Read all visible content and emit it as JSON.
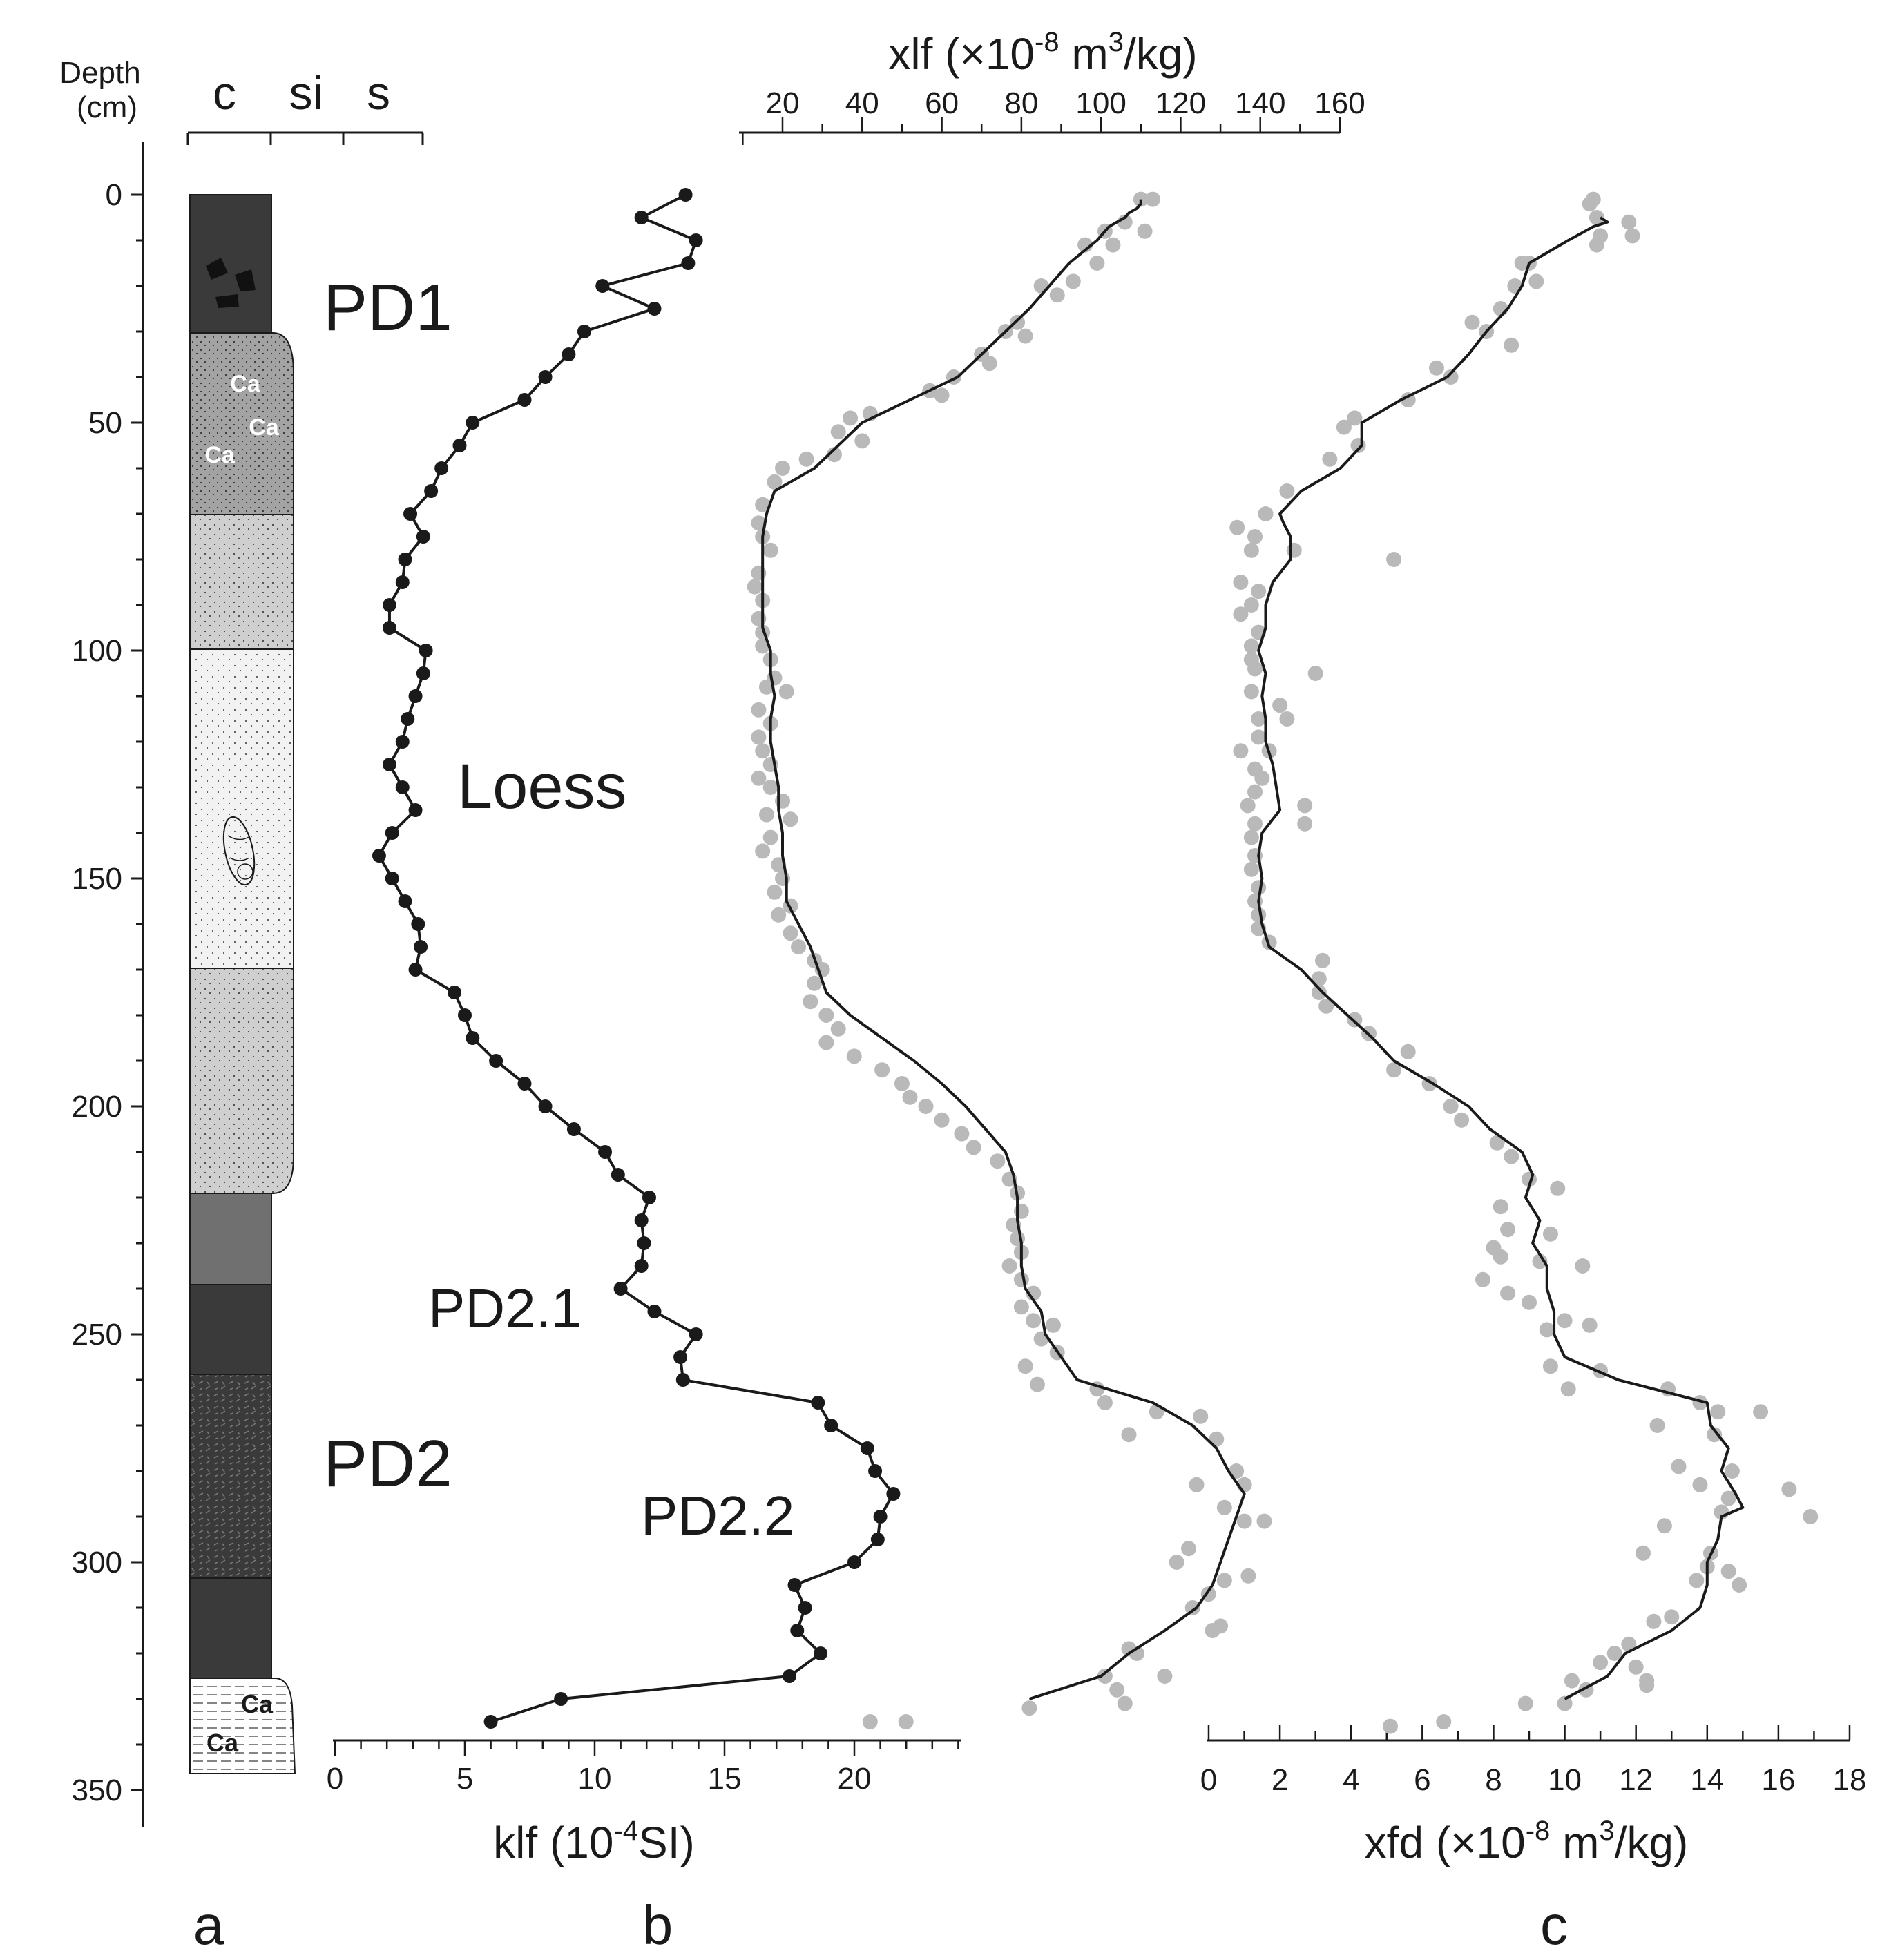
{
  "panel_labels": {
    "a": "a",
    "b": "b",
    "c": "c"
  },
  "depth_axis": {
    "label_line1": "Depth",
    "label_line2": "(cm)",
    "ticks": [
      0,
      50,
      100,
      150,
      200,
      250,
      300,
      350
    ],
    "range": [
      0,
      350
    ]
  },
  "grain_size": {
    "c": "c",
    "si": "si",
    "s": "s"
  },
  "unit_labels": {
    "pd1": "PD1",
    "loess": "Loess",
    "pd2": "PD2",
    "pd21": "PD2.1",
    "pd22": "PD2.2",
    "ca": "Ca"
  },
  "colors": {
    "line": "#1a1a1a",
    "dot": "#b9b9b9",
    "pd": "#3a3a3a",
    "ca_zone": "#a3a3a3",
    "loess_mid": "#cfcfcf",
    "loess_light": "#f2f2f2",
    "grey_band": "#707070"
  },
  "chart_data": [
    {
      "type": "line",
      "panel": "b",
      "series_label": "PD2.1",
      "xlabel": "klf (10",
      "xlabel_sup": "-4",
      "xlabel_tail": "SI)",
      "xlim": [
        0,
        24
      ],
      "xticks": [
        0,
        5,
        10,
        15,
        20
      ],
      "depth": [
        0,
        5,
        10,
        15,
        20,
        25,
        30,
        35,
        40,
        45,
        50,
        55,
        60,
        65,
        70,
        75,
        80,
        85,
        90,
        95,
        100,
        105,
        110,
        115,
        120,
        125,
        130,
        135,
        140,
        145,
        150,
        155,
        160,
        165,
        170,
        175,
        180,
        185,
        190,
        195,
        200,
        205,
        210,
        215,
        220,
        225,
        230,
        235,
        240,
        245,
        250,
        255,
        260,
        265,
        270,
        275,
        280,
        285,
        290,
        295,
        300,
        305,
        310,
        315,
        320,
        325,
        330,
        335
      ],
      "values": [
        13.5,
        11.8,
        13.9,
        13.6,
        10.3,
        12.3,
        9.6,
        9,
        8.1,
        7.3,
        5.3,
        4.8,
        4.1,
        3.7,
        2.9,
        3.4,
        2.7,
        2.6,
        2.1,
        2.1,
        3.5,
        3.4,
        3.1,
        2.8,
        2.6,
        2.1,
        2.6,
        3.1,
        2.2,
        1.7,
        2.2,
        2.7,
        3.2,
        3.3,
        3.1,
        4.6,
        5,
        5.3,
        6.2,
        7.3,
        8.1,
        9.2,
        10.4,
        10.9,
        12.1,
        11.8,
        11.9,
        11.8,
        11,
        12.3,
        13.9,
        13.3,
        13.4,
        18.6,
        19.1,
        20.5,
        20.8,
        21.5,
        21,
        20.9,
        20,
        17.7,
        18.1,
        17.8,
        18.7,
        17.5,
        8.7,
        6
      ]
    },
    {
      "type": "scatter",
      "panel": "b",
      "xlabel_pre": "xlf (×10",
      "xlabel_sup": "-8",
      "xlabel_mid": " m",
      "xlabel_sup2": "3",
      "xlabel_tail": "/kg)",
      "xlim": [
        10,
        160
      ],
      "xticks": [
        20,
        40,
        60,
        80,
        100,
        120,
        140,
        160
      ],
      "points": [
        [
          110,
          1
        ],
        [
          113,
          1
        ],
        [
          106,
          6
        ],
        [
          101,
          8
        ],
        [
          111,
          8
        ],
        [
          96,
          11
        ],
        [
          103,
          11
        ],
        [
          99,
          15
        ],
        [
          93,
          19
        ],
        [
          85,
          20
        ],
        [
          89,
          22
        ],
        [
          79,
          28
        ],
        [
          76,
          30
        ],
        [
          81,
          31
        ],
        [
          70,
          35
        ],
        [
          72,
          37
        ],
        [
          63,
          40
        ],
        [
          57,
          43
        ],
        [
          60,
          44
        ],
        [
          42,
          48
        ],
        [
          37,
          49
        ],
        [
          34,
          52
        ],
        [
          40,
          54
        ],
        [
          33,
          57
        ],
        [
          26,
          58
        ],
        [
          20,
          60
        ],
        [
          18,
          63
        ],
        [
          15,
          68
        ],
        [
          14,
          72
        ],
        [
          15,
          75
        ],
        [
          17,
          78
        ],
        [
          14,
          83
        ],
        [
          13,
          86
        ],
        [
          15,
          89
        ],
        [
          14,
          93
        ],
        [
          15,
          96
        ],
        [
          15,
          99
        ],
        [
          17,
          102
        ],
        [
          18,
          106
        ],
        [
          16,
          108
        ],
        [
          21,
          109
        ],
        [
          14,
          113
        ],
        [
          17,
          116
        ],
        [
          14,
          119
        ],
        [
          15,
          122
        ],
        [
          17,
          125
        ],
        [
          14,
          128
        ],
        [
          17,
          130
        ],
        [
          20,
          133
        ],
        [
          16,
          136
        ],
        [
          22,
          137
        ],
        [
          17,
          141
        ],
        [
          15,
          144
        ],
        [
          19,
          147
        ],
        [
          20,
          150
        ],
        [
          18,
          153
        ],
        [
          22,
          156
        ],
        [
          19,
          158
        ],
        [
          22,
          162
        ],
        [
          24,
          165
        ],
        [
          28,
          168
        ],
        [
          30,
          170
        ],
        [
          28,
          173
        ],
        [
          27,
          177
        ],
        [
          31,
          180
        ],
        [
          34,
          183
        ],
        [
          31,
          186
        ],
        [
          38,
          189
        ],
        [
          45,
          192
        ],
        [
          50,
          195
        ],
        [
          52,
          198
        ],
        [
          56,
          200
        ],
        [
          60,
          203
        ],
        [
          65,
          206
        ],
        [
          68,
          209
        ],
        [
          74,
          212
        ],
        [
          77,
          216
        ],
        [
          79,
          219
        ],
        [
          80,
          223
        ],
        [
          78,
          226
        ],
        [
          79,
          229
        ],
        [
          80,
          232
        ],
        [
          77,
          235
        ],
        [
          80,
          238
        ],
        [
          83,
          241
        ],
        [
          80,
          244
        ],
        [
          83,
          247
        ],
        [
          88,
          248
        ],
        [
          85,
          251
        ],
        [
          89,
          254
        ],
        [
          81,
          257
        ],
        [
          84,
          261
        ],
        [
          99,
          262
        ],
        [
          101,
          265
        ],
        [
          114,
          267
        ],
        [
          125,
          268
        ],
        [
          107,
          272
        ],
        [
          129,
          273
        ],
        [
          134,
          280
        ],
        [
          124,
          283
        ],
        [
          136,
          283
        ],
        [
          131,
          288
        ],
        [
          136,
          291
        ],
        [
          141,
          291
        ],
        [
          122,
          297
        ],
        [
          119,
          300
        ],
        [
          137,
          303
        ],
        [
          131,
          304
        ],
        [
          127,
          307
        ],
        [
          123,
          310
        ],
        [
          130,
          314
        ],
        [
          128,
          315
        ],
        [
          107,
          319
        ],
        [
          109,
          320
        ],
        [
          101,
          325
        ],
        [
          116,
          325
        ],
        [
          104,
          328
        ],
        [
          106,
          331
        ],
        [
          82,
          332
        ],
        [
          42,
          335
        ],
        [
          51,
          335
        ]
      ],
      "line_depth": [
        1,
        2,
        3,
        4,
        5,
        7,
        10,
        15,
        20,
        25,
        30,
        35,
        40,
        45,
        50,
        55,
        60,
        65,
        70,
        75,
        80,
        85,
        90,
        95,
        100,
        105,
        110,
        115,
        120,
        125,
        130,
        135,
        140,
        145,
        150,
        155,
        160,
        165,
        170,
        175,
        180,
        185,
        190,
        195,
        200,
        205,
        210,
        215,
        220,
        225,
        230,
        235,
        240,
        245,
        250,
        255,
        260,
        265,
        270,
        275,
        280,
        285,
        290,
        295,
        300,
        305,
        310,
        315,
        320,
        325,
        330
      ],
      "line_values": [
        110,
        110,
        109,
        107,
        106,
        102,
        99,
        92,
        87,
        82,
        76,
        70,
        64,
        52,
        40,
        34,
        28,
        18,
        16,
        15,
        15,
        15,
        15,
        15,
        17,
        17,
        18,
        17,
        17,
        18,
        19,
        19,
        20,
        20,
        21,
        21,
        24,
        27,
        29,
        31,
        37,
        45,
        53,
        60,
        66,
        71,
        76,
        78,
        79,
        79,
        80,
        80,
        81,
        85,
        86,
        90,
        94,
        113,
        123,
        129,
        132,
        136,
        134,
        132,
        130,
        128,
        124,
        116,
        107,
        100,
        82
      ]
    },
    {
      "type": "scatter",
      "panel": "c",
      "xlabel_pre": "xfd (×10",
      "xlabel_sup": "-8",
      "xlabel_mid": " m",
      "xlabel_sup2": "3",
      "xlabel_tail": "/kg)",
      "xlim": [
        0,
        18
      ],
      "xticks": [
        0,
        2,
        4,
        6,
        8,
        10,
        12,
        14,
        16,
        18
      ],
      "points": [
        [
          10.8,
          1
        ],
        [
          10.7,
          2
        ],
        [
          10.9,
          5
        ],
        [
          11.8,
          6
        ],
        [
          11,
          9
        ],
        [
          11.9,
          9
        ],
        [
          10.9,
          11
        ],
        [
          9,
          15
        ],
        [
          8.8,
          15
        ],
        [
          9.2,
          19
        ],
        [
          8.6,
          20
        ],
        [
          8.2,
          25
        ],
        [
          7.4,
          28
        ],
        [
          7.8,
          30
        ],
        [
          8.5,
          33
        ],
        [
          6.4,
          38
        ],
        [
          6.8,
          40
        ],
        [
          5.6,
          45
        ],
        [
          4.1,
          49
        ],
        [
          3.8,
          51
        ],
        [
          4.2,
          55
        ],
        [
          3.4,
          58
        ],
        [
          2.2,
          65
        ],
        [
          1.6,
          70
        ],
        [
          0.8,
          73
        ],
        [
          1.3,
          75
        ],
        [
          1.2,
          78
        ],
        [
          2.4,
          78
        ],
        [
          5.2,
          80
        ],
        [
          0.9,
          85
        ],
        [
          1.4,
          87
        ],
        [
          1.2,
          90
        ],
        [
          0.9,
          92
        ],
        [
          1.4,
          96
        ],
        [
          1.2,
          99
        ],
        [
          1.2,
          102
        ],
        [
          1.3,
          104
        ],
        [
          3,
          105
        ],
        [
          1.2,
          109
        ],
        [
          2,
          112
        ],
        [
          1.4,
          115
        ],
        [
          2.2,
          115
        ],
        [
          1.4,
          119
        ],
        [
          0.9,
          122
        ],
        [
          1.7,
          122
        ],
        [
          1.3,
          126
        ],
        [
          1.5,
          128
        ],
        [
          1.3,
          131
        ],
        [
          1.1,
          134
        ],
        [
          2.7,
          134
        ],
        [
          1.3,
          138
        ],
        [
          2.7,
          138
        ],
        [
          1.2,
          141
        ],
        [
          1.3,
          145
        ],
        [
          1.2,
          148
        ],
        [
          1.4,
          152
        ],
        [
          1.3,
          155
        ],
        [
          1.4,
          158
        ],
        [
          1.4,
          161
        ],
        [
          1.7,
          164
        ],
        [
          3.2,
          168
        ],
        [
          3.1,
          172
        ],
        [
          3.1,
          175
        ],
        [
          3.3,
          178
        ],
        [
          4.1,
          181
        ],
        [
          4.5,
          184
        ],
        [
          5.6,
          188
        ],
        [
          5.2,
          192
        ],
        [
          6.2,
          195
        ],
        [
          6.8,
          200
        ],
        [
          7.1,
          203
        ],
        [
          8.1,
          208
        ],
        [
          8.5,
          211
        ],
        [
          9,
          216
        ],
        [
          9.8,
          218
        ],
        [
          8.2,
          222
        ],
        [
          8.4,
          227
        ],
        [
          9.6,
          228
        ],
        [
          8,
          231
        ],
        [
          8.2,
          233
        ],
        [
          9.3,
          234
        ],
        [
          10.5,
          235
        ],
        [
          7.7,
          238
        ],
        [
          8.4,
          241
        ],
        [
          9,
          243
        ],
        [
          10,
          247
        ],
        [
          10.7,
          248
        ],
        [
          9.5,
          249
        ],
        [
          9.6,
          257
        ],
        [
          11,
          258
        ],
        [
          10.1,
          262
        ],
        [
          12.9,
          262
        ],
        [
          13.8,
          265
        ],
        [
          14.3,
          267
        ],
        [
          15.5,
          267
        ],
        [
          12.6,
          270
        ],
        [
          14.2,
          272
        ],
        [
          13.2,
          279
        ],
        [
          14.7,
          280
        ],
        [
          13.8,
          283
        ],
        [
          16.3,
          284
        ],
        [
          14.6,
          286
        ],
        [
          14.4,
          289
        ],
        [
          12.8,
          292
        ],
        [
          16.9,
          290
        ],
        [
          14.1,
          298
        ],
        [
          12.2,
          298
        ],
        [
          14,
          301
        ],
        [
          14.6,
          302
        ],
        [
          13.7,
          304
        ],
        [
          14.9,
          305
        ],
        [
          13,
          312
        ],
        [
          12.5,
          313
        ],
        [
          11.8,
          318
        ],
        [
          11.4,
          320
        ],
        [
          11,
          322
        ],
        [
          12,
          323
        ],
        [
          10.2,
          326
        ],
        [
          12.3,
          326
        ],
        [
          10.6,
          328
        ],
        [
          12.3,
          327
        ],
        [
          10,
          331
        ],
        [
          8.9,
          331
        ],
        [
          5.1,
          336
        ],
        [
          6.6,
          335
        ]
      ],
      "line_depth": [
        5,
        6,
        7,
        10,
        15,
        20,
        25,
        30,
        35,
        40,
        45,
        50,
        55,
        60,
        65,
        70,
        72,
        75,
        80,
        85,
        90,
        95,
        100,
        105,
        110,
        115,
        120,
        125,
        130,
        135,
        140,
        145,
        150,
        155,
        160,
        165,
        170,
        175,
        180,
        185,
        190,
        195,
        200,
        205,
        210,
        215,
        220,
        225,
        230,
        235,
        240,
        245,
        250,
        255,
        260,
        265,
        270,
        275,
        280,
        285,
        288,
        290,
        295,
        300,
        305,
        310,
        315,
        320,
        325,
        330
      ],
      "line_values": [
        11,
        11.2,
        10.8,
        10.1,
        9,
        8.8,
        8.4,
        7.8,
        7.3,
        6.7,
        5.4,
        4.3,
        4.3,
        3.7,
        2.6,
        2,
        2.1,
        2.3,
        2.3,
        1.8,
        1.6,
        1.6,
        1.4,
        1.6,
        1.5,
        1.6,
        1.6,
        1.8,
        1.9,
        2,
        1.5,
        1.4,
        1.5,
        1.4,
        1.5,
        1.7,
        2.6,
        3.2,
        3.9,
        4.6,
        5.2,
        6.3,
        7.3,
        7.9,
        8.8,
        9.1,
        8.9,
        9.3,
        9.1,
        9.5,
        9.5,
        9.7,
        9.7,
        10,
        11.5,
        14,
        14.1,
        14.6,
        14.4,
        14.8,
        15,
        14.4,
        14.3,
        14,
        14,
        13.8,
        13,
        11.7,
        11.2,
        10
      ]
    }
  ]
}
